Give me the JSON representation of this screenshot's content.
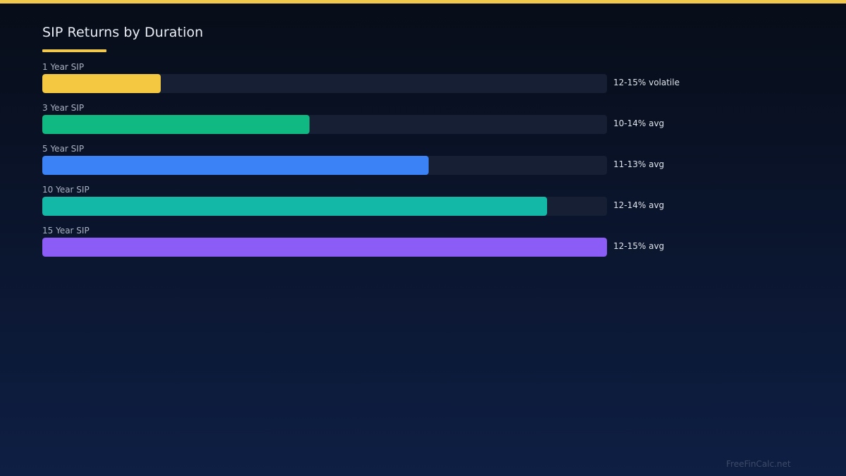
{
  "title": "SIP Returns by Duration",
  "watermark": "FreeFinCalc.net",
  "colors": {
    "accent": "#f2c94c",
    "track": "#161f33"
  },
  "chart_data": {
    "type": "bar",
    "orientation": "horizontal",
    "title": "SIP Returns by Duration",
    "categories": [
      "1 Year SIP",
      "3 Year SIP",
      "5 Year SIP",
      "10 Year SIP",
      "15 Year SIP"
    ],
    "values": [
      0.21,
      0.473,
      0.684,
      0.894,
      1.0
    ],
    "value_labels": [
      "12-15% volatile",
      "10-14% avg",
      "11-13% avg",
      "12-14% avg",
      "12-15% avg"
    ],
    "colors": [
      "#f5c842",
      "#10b981",
      "#3b82f6",
      "#14b8a6",
      "#8b5cf6"
    ],
    "xlim": [
      0,
      1
    ]
  }
}
